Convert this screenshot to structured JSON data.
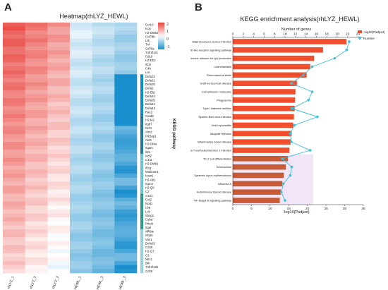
{
  "panel_a": {
    "letter": "A",
    "title": "Heatmap(rhLYZ_HEWL)",
    "legend_ticks": [
      "2",
      "1",
      "0",
      "-1"
    ],
    "group_label": "KEGG pathway",
    "columns": [
      "rhLYZ_1",
      "rhLYZ_2",
      "rhLYZ_3",
      "HEWL_1",
      "HEWL_2",
      "HEWL_3"
    ],
    "genes": [
      "Ccr10",
      "Icos",
      "H2-DMb2",
      "Col79b",
      "Ltb",
      "Tnf",
      "Cd79a",
      "Tnfrsf13c",
      "Cd19",
      "H2-Eb2",
      "Il21r",
      "C4b",
      "Lat",
      "Defa22",
      "Defa21",
      "Defa20",
      "Defa2",
      "H2-Eb1",
      "Defa34",
      "Defa35",
      "Defa41",
      "Defa43",
      "Rac2",
      "Card9",
      "H2-M2",
      "Itgb7",
      "Ncf4",
      "Aim2",
      "Pik3ap1",
      "Akt3",
      "H2-DMa",
      "Itgam",
      "Il1b",
      "Ncf2",
      "C1ra",
      "H2-DMb1",
      "Il2rg",
      "Madcam1",
      "Icam1",
      "H2-Ab1",
      "Irgm2",
      "H2-Q6",
      "C2",
      "Cxcl1",
      "Col2",
      "Nod1",
      "Lbp",
      "Lck",
      "Sting1",
      "Cyba",
      "Prkcb",
      "Itgal",
      "Nfkbie",
      "Gbp5",
      "Vav1",
      "Defa32",
      "Cd28",
      "H2-Q7",
      "C3",
      "Nlrc1",
      "Btk",
      "Tnfrsf13b",
      "Cd28"
    ],
    "row_groups": [
      {
        "count": 13,
        "color": "#ffffff"
      },
      {
        "count": 10,
        "color": "#0a8fc8"
      },
      {
        "count": 10,
        "color": "#1e7d9f"
      },
      {
        "count": 10,
        "color": "#6cc2d6"
      },
      {
        "count": 9,
        "color": "#2d9c8c"
      },
      {
        "count": 11,
        "color": "#9bd0e0"
      }
    ],
    "colors": {
      "high": "#e8403a",
      "mid": "#ffffff",
      "low": "#1a8fce"
    }
  },
  "panel_b": {
    "letter": "B",
    "chart_data": {
      "type": "bar",
      "title": "KEGG enrichment analysis(rhLYZ_HEWL)",
      "top_axis_label": "Number of genes",
      "xlabel": "-log10(Padjust)",
      "top_ticks": [
        "0",
        "2",
        "4",
        "6",
        "8",
        "10",
        "12",
        "14",
        "16",
        "18",
        "20",
        "22",
        "24"
      ],
      "bottom_ticks": [
        "0",
        "5",
        "10",
        "15",
        "20",
        "25",
        "30",
        "35"
      ],
      "legend": [
        "-log10(Padjust)",
        "Number"
      ],
      "legend_placement": "top-right",
      "xlim_bottom": [
        0,
        35
      ],
      "xlim_top": [
        0,
        25
      ],
      "categories": [
        "Staphylococcus aureus infection",
        "NOD-like receptor signaling pathway",
        "Intestinal immune network for IgA production",
        "Leishmaniasis",
        "Rheumatoid arthritis",
        "Graft-versus-host disease",
        "Cell adhesion molecules",
        "Phagosome",
        "Type I diabetes mellitus",
        "Epstein-Barr virus infection",
        "Viral myocarditis",
        "Allograft rejection",
        "Inflammatory bowel disease",
        "Human T-cell leukemia virus 1 infection",
        "Th17 cell differentiation",
        "Tuberculosis",
        "Systemic lupus erythematosus",
        "Influenza A",
        "Autoimmune thyroid disease",
        "NF-kappa B signaling pathway"
      ],
      "series": [
        {
          "name": "-log10(Padjust)",
          "values": [
            30.5,
            24.2,
            21.8,
            20.8,
            19.8,
            17.2,
            16.8,
            16.7,
            16.6,
            16.4,
            16.2,
            15.8,
            15.5,
            15.2,
            14.8,
            14.2,
            13.7,
            13.3,
            12.9,
            12.6
          ]
        },
        {
          "name": "Number",
          "values": [
            22.3,
            21.8,
            19.5,
            15.2,
            13.5,
            11.2,
            15.2,
            14.5,
            11.3,
            16.2,
            11.8,
            11.0,
            11.2,
            14.8,
            9.5,
            11.3,
            11.0,
            9.7,
            9.3,
            10.0
          ]
        }
      ],
      "colors": {
        "bar": "#f04e2d",
        "bar_lower": "#c85a35",
        "line": "#3ac2d8",
        "band": "#c59be0"
      }
    }
  }
}
